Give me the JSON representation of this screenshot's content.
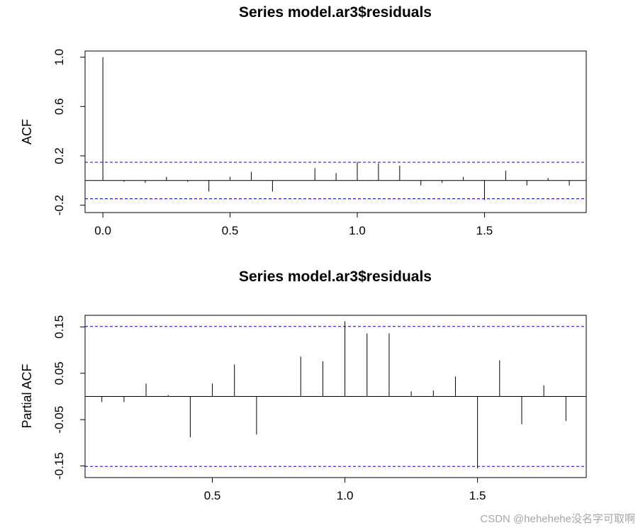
{
  "watermark": "CSDN @hehehehe没名字可取啊",
  "chart_data": [
    {
      "type": "bar",
      "title": "Series  model.ar3$residuals",
      "xlabel": "",
      "ylabel": "ACF",
      "xlim": [
        -0.07,
        1.9
      ],
      "ylim": [
        -0.26,
        1.05
      ],
      "xticks": [
        0.0,
        0.5,
        1.0,
        1.5
      ],
      "xtick_labels": [
        "0.0",
        "0.5",
        "1.0",
        "1.5"
      ],
      "yticks": [
        -0.2,
        0.2,
        0.6,
        1.0
      ],
      "ytick_labels": [
        "-0.2",
        "0.2",
        "0.6",
        "1.0"
      ],
      "ci": 0.148,
      "colors": {
        "lines": "#000000",
        "ci": "#0000cc"
      },
      "x": [
        0.0,
        0.0833,
        0.1667,
        0.25,
        0.3333,
        0.4167,
        0.5,
        0.5833,
        0.6667,
        0.75,
        0.8333,
        0.9167,
        1.0,
        1.0833,
        1.1667,
        1.25,
        1.3333,
        1.4167,
        1.5,
        1.5833,
        1.6667,
        1.75,
        1.8333
      ],
      "values": [
        1.0,
        -0.01,
        -0.02,
        0.03,
        -0.01,
        -0.09,
        0.03,
        0.07,
        -0.09,
        0.0,
        0.1,
        0.06,
        0.15,
        0.14,
        0.12,
        -0.04,
        -0.02,
        0.03,
        -0.16,
        0.08,
        -0.04,
        0.02,
        -0.04
      ]
    },
    {
      "type": "bar",
      "title": "Series  model.ar3$residuals",
      "xlabel": "",
      "ylabel": "Partial ACF",
      "xlim": [
        0.02,
        1.91
      ],
      "ylim": [
        -0.175,
        0.175
      ],
      "xticks": [
        0.5,
        1.0,
        1.5
      ],
      "xtick_labels": [
        "0.5",
        "1.0",
        "1.5"
      ],
      "yticks": [
        -0.15,
        -0.05,
        0.05,
        0.15
      ],
      "ytick_labels": [
        "-0.15",
        "-0.05",
        "0.05",
        "0.15"
      ],
      "ci": 0.151,
      "colors": {
        "lines": "#000000",
        "ci": "#0000cc"
      },
      "x": [
        0.0833,
        0.1667,
        0.25,
        0.3333,
        0.4167,
        0.5,
        0.5833,
        0.6667,
        0.75,
        0.8333,
        0.9167,
        1.0,
        1.0833,
        1.1667,
        1.25,
        1.3333,
        1.4167,
        1.5,
        1.5833,
        1.6667,
        1.75,
        1.8333
      ],
      "values": [
        -0.012,
        -0.012,
        0.028,
        0.003,
        -0.088,
        0.028,
        0.069,
        -0.082,
        0.0,
        0.086,
        0.076,
        0.162,
        0.136,
        0.136,
        0.011,
        0.013,
        0.043,
        -0.155,
        0.078,
        -0.06,
        0.024,
        -0.053
      ]
    }
  ]
}
